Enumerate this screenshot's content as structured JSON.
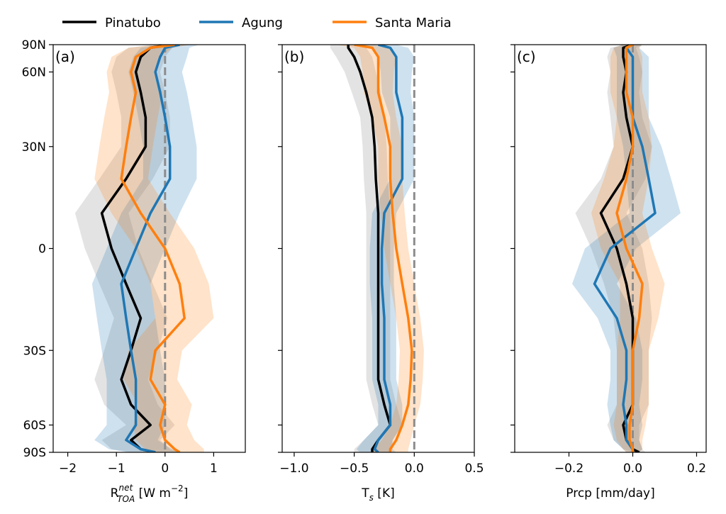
{
  "chart_data": {
    "type": "line",
    "orientation": "latitude-profile",
    "legend": {
      "placement": "top",
      "entries": [
        {
          "name": "Pinatubo",
          "color": "#000000"
        },
        {
          "name": "Agung",
          "color": "#1f77b4"
        },
        {
          "name": "Santa Maria",
          "color": "#ff7f0e"
        }
      ]
    },
    "y_axis": {
      "label": "",
      "scale": "sine-latitude",
      "range": [
        -90,
        90
      ],
      "ticks": [
        {
          "value": 90,
          "label": "90N"
        },
        {
          "value": 60,
          "label": "60N"
        },
        {
          "value": 30,
          "label": "30N"
        },
        {
          "value": 0,
          "label": "0"
        },
        {
          "value": -30,
          "label": "30S"
        },
        {
          "value": -60,
          "label": "60S"
        },
        {
          "value": -90,
          "label": "90S"
        }
      ]
    },
    "latitudes": [
      90,
      80,
      70,
      60,
      50,
      40,
      30,
      20,
      10,
      0,
      -10,
      -20,
      -30,
      -40,
      -50,
      -60,
      -70,
      -80,
      -90
    ],
    "panels": [
      {
        "id": "a",
        "panel_label": "(a)",
        "xlabel_main": "R",
        "xlabel_sup": "net",
        "xlabel_sub": "TOA",
        "xlabel_tail": " [W m",
        "xlabel_exp": "−2",
        "xlabel_end": "]",
        "xlim": [
          -2.3,
          1.65
        ],
        "xticks": [
          {
            "value": -2,
            "label": "−2"
          },
          {
            "value": -1,
            "label": "−1"
          },
          {
            "value": 0,
            "label": "0"
          },
          {
            "value": 1,
            "label": "1"
          }
        ],
        "series": [
          {
            "name": "Pinatubo",
            "values": [
              0.1,
              -0.3,
              -0.5,
              -0.6,
              -0.5,
              -0.4,
              -0.4,
              -0.8,
              -1.3,
              -1.1,
              -0.8,
              -0.5,
              -0.7,
              -0.9,
              -0.7,
              -0.3,
              -0.7,
              -0.5,
              -0.2
            ],
            "spread": [
              0.35,
              0.45,
              0.5,
              0.5,
              0.5,
              0.5,
              0.5,
              0.55,
              0.55,
              0.55,
              0.55,
              0.55,
              0.55,
              0.55,
              0.55,
              0.5,
              0.6,
              0.6,
              0.5
            ]
          },
          {
            "name": "Agung",
            "values": [
              0.3,
              0.0,
              -0.1,
              -0.2,
              -0.1,
              0.0,
              0.1,
              0.1,
              -0.3,
              -0.6,
              -0.9,
              -0.8,
              -0.7,
              -0.6,
              -0.6,
              -0.6,
              -0.8,
              -0.5,
              -0.2
            ],
            "spread": [
              0.4,
              0.5,
              0.55,
              0.55,
              0.55,
              0.55,
              0.55,
              0.55,
              0.6,
              0.6,
              0.6,
              0.6,
              0.6,
              0.6,
              0.6,
              0.6,
              0.65,
              0.65,
              0.55
            ]
          },
          {
            "name": "Santa Maria",
            "values": [
              0.2,
              -0.3,
              -0.6,
              -0.7,
              -0.6,
              -0.7,
              -0.8,
              -0.9,
              -0.5,
              0.0,
              0.3,
              0.4,
              -0.2,
              -0.3,
              0.0,
              -0.1,
              0.0,
              0.2,
              0.3
            ],
            "spread": [
              0.35,
              0.45,
              0.5,
              0.5,
              0.55,
              0.55,
              0.55,
              0.55,
              0.6,
              0.6,
              0.6,
              0.6,
              0.55,
              0.55,
              0.55,
              0.55,
              0.6,
              0.6,
              0.5
            ]
          }
        ]
      },
      {
        "id": "b",
        "panel_label": "(b)",
        "xlabel_main": "T",
        "xlabel_sub": "s",
        "xlabel_tail": " [K]",
        "xlim": [
          -1.1,
          0.5
        ],
        "xticks": [
          {
            "value": -1.0,
            "label": "−1.0"
          },
          {
            "value": -0.5,
            "label": "−0.5"
          },
          {
            "value": 0.0,
            "label": "0.0"
          },
          {
            "value": 0.5,
            "label": "0.5"
          }
        ],
        "series": [
          {
            "name": "Pinatubo",
            "values": [
              -0.55,
              -0.55,
              -0.5,
              -0.45,
              -0.4,
              -0.35,
              -0.33,
              -0.32,
              -0.3,
              -0.3,
              -0.3,
              -0.3,
              -0.3,
              -0.3,
              -0.25,
              -0.2,
              -0.3,
              -0.35,
              -0.35
            ],
            "spread": [
              0.15,
              0.15,
              0.15,
              0.13,
              0.12,
              0.1,
              0.1,
              0.1,
              0.1,
              0.1,
              0.1,
              0.1,
              0.1,
              0.1,
              0.1,
              0.1,
              0.12,
              0.15,
              0.15
            ]
          },
          {
            "name": "Agung",
            "values": [
              -0.3,
              -0.2,
              -0.15,
              -0.15,
              -0.15,
              -0.1,
              -0.1,
              -0.1,
              -0.25,
              -0.27,
              -0.27,
              -0.25,
              -0.25,
              -0.25,
              -0.2,
              -0.2,
              -0.3,
              -0.33,
              -0.3
            ],
            "spread": [
              0.15,
              0.15,
              0.15,
              0.13,
              0.12,
              0.1,
              0.1,
              0.1,
              0.1,
              0.1,
              0.1,
              0.1,
              0.1,
              0.1,
              0.1,
              0.1,
              0.12,
              0.15,
              0.15
            ]
          },
          {
            "name": "Santa Maria",
            "values": [
              -0.5,
              -0.35,
              -0.3,
              -0.3,
              -0.3,
              -0.25,
              -0.2,
              -0.2,
              -0.18,
              -0.15,
              -0.1,
              -0.05,
              -0.02,
              -0.03,
              -0.05,
              -0.1,
              -0.15,
              -0.2,
              -0.2
            ],
            "spread": [
              0.15,
              0.15,
              0.15,
              0.13,
              0.12,
              0.1,
              0.1,
              0.1,
              0.1,
              0.1,
              0.1,
              0.1,
              0.1,
              0.1,
              0.1,
              0.1,
              0.12,
              0.15,
              0.15
            ]
          }
        ]
      },
      {
        "id": "c",
        "panel_label": "(c)",
        "xlabel_main": "Prcp [mm/day]",
        "xlim": [
          -0.37,
          0.23
        ],
        "xticks": [
          {
            "value": -0.2,
            "label": "−0.2"
          },
          {
            "value": 0.0,
            "label": "0.0"
          },
          {
            "value": 0.2,
            "label": "0.2"
          }
        ],
        "series": [
          {
            "name": "Pinatubo",
            "values": [
              0.0,
              -0.03,
              -0.03,
              -0.02,
              -0.03,
              -0.02,
              0.0,
              -0.03,
              -0.1,
              -0.05,
              -0.02,
              0.0,
              0.0,
              0.0,
              0.0,
              -0.03,
              -0.02,
              0.0,
              0.02
            ],
            "spread": [
              0.03,
              0.04,
              0.05,
              0.05,
              0.05,
              0.05,
              0.06,
              0.07,
              0.08,
              0.08,
              0.07,
              0.06,
              0.05,
              0.05,
              0.05,
              0.05,
              0.04,
              0.03,
              0.02
            ]
          },
          {
            "name": "Agung",
            "values": [
              0.0,
              -0.02,
              0.0,
              0.0,
              0.0,
              0.0,
              0.03,
              0.05,
              0.07,
              -0.07,
              -0.12,
              -0.05,
              -0.02,
              -0.02,
              -0.03,
              -0.02,
              -0.02,
              0.0,
              0.0
            ],
            "spread": [
              0.03,
              0.04,
              0.05,
              0.05,
              0.05,
              0.05,
              0.06,
              0.07,
              0.08,
              0.08,
              0.07,
              0.06,
              0.05,
              0.05,
              0.05,
              0.05,
              0.04,
              0.03,
              0.02
            ]
          },
          {
            "name": "Santa Maria",
            "values": [
              0.0,
              -0.02,
              -0.02,
              -0.02,
              -0.02,
              0.0,
              0.0,
              -0.02,
              -0.05,
              -0.02,
              0.03,
              0.02,
              0.0,
              0.0,
              0.0,
              -0.01,
              -0.01,
              0.0,
              0.0
            ],
            "spread": [
              0.03,
              0.04,
              0.05,
              0.05,
              0.05,
              0.05,
              0.06,
              0.07,
              0.08,
              0.08,
              0.07,
              0.06,
              0.05,
              0.05,
              0.05,
              0.05,
              0.04,
              0.03,
              0.02
            ]
          }
        ]
      }
    ]
  }
}
